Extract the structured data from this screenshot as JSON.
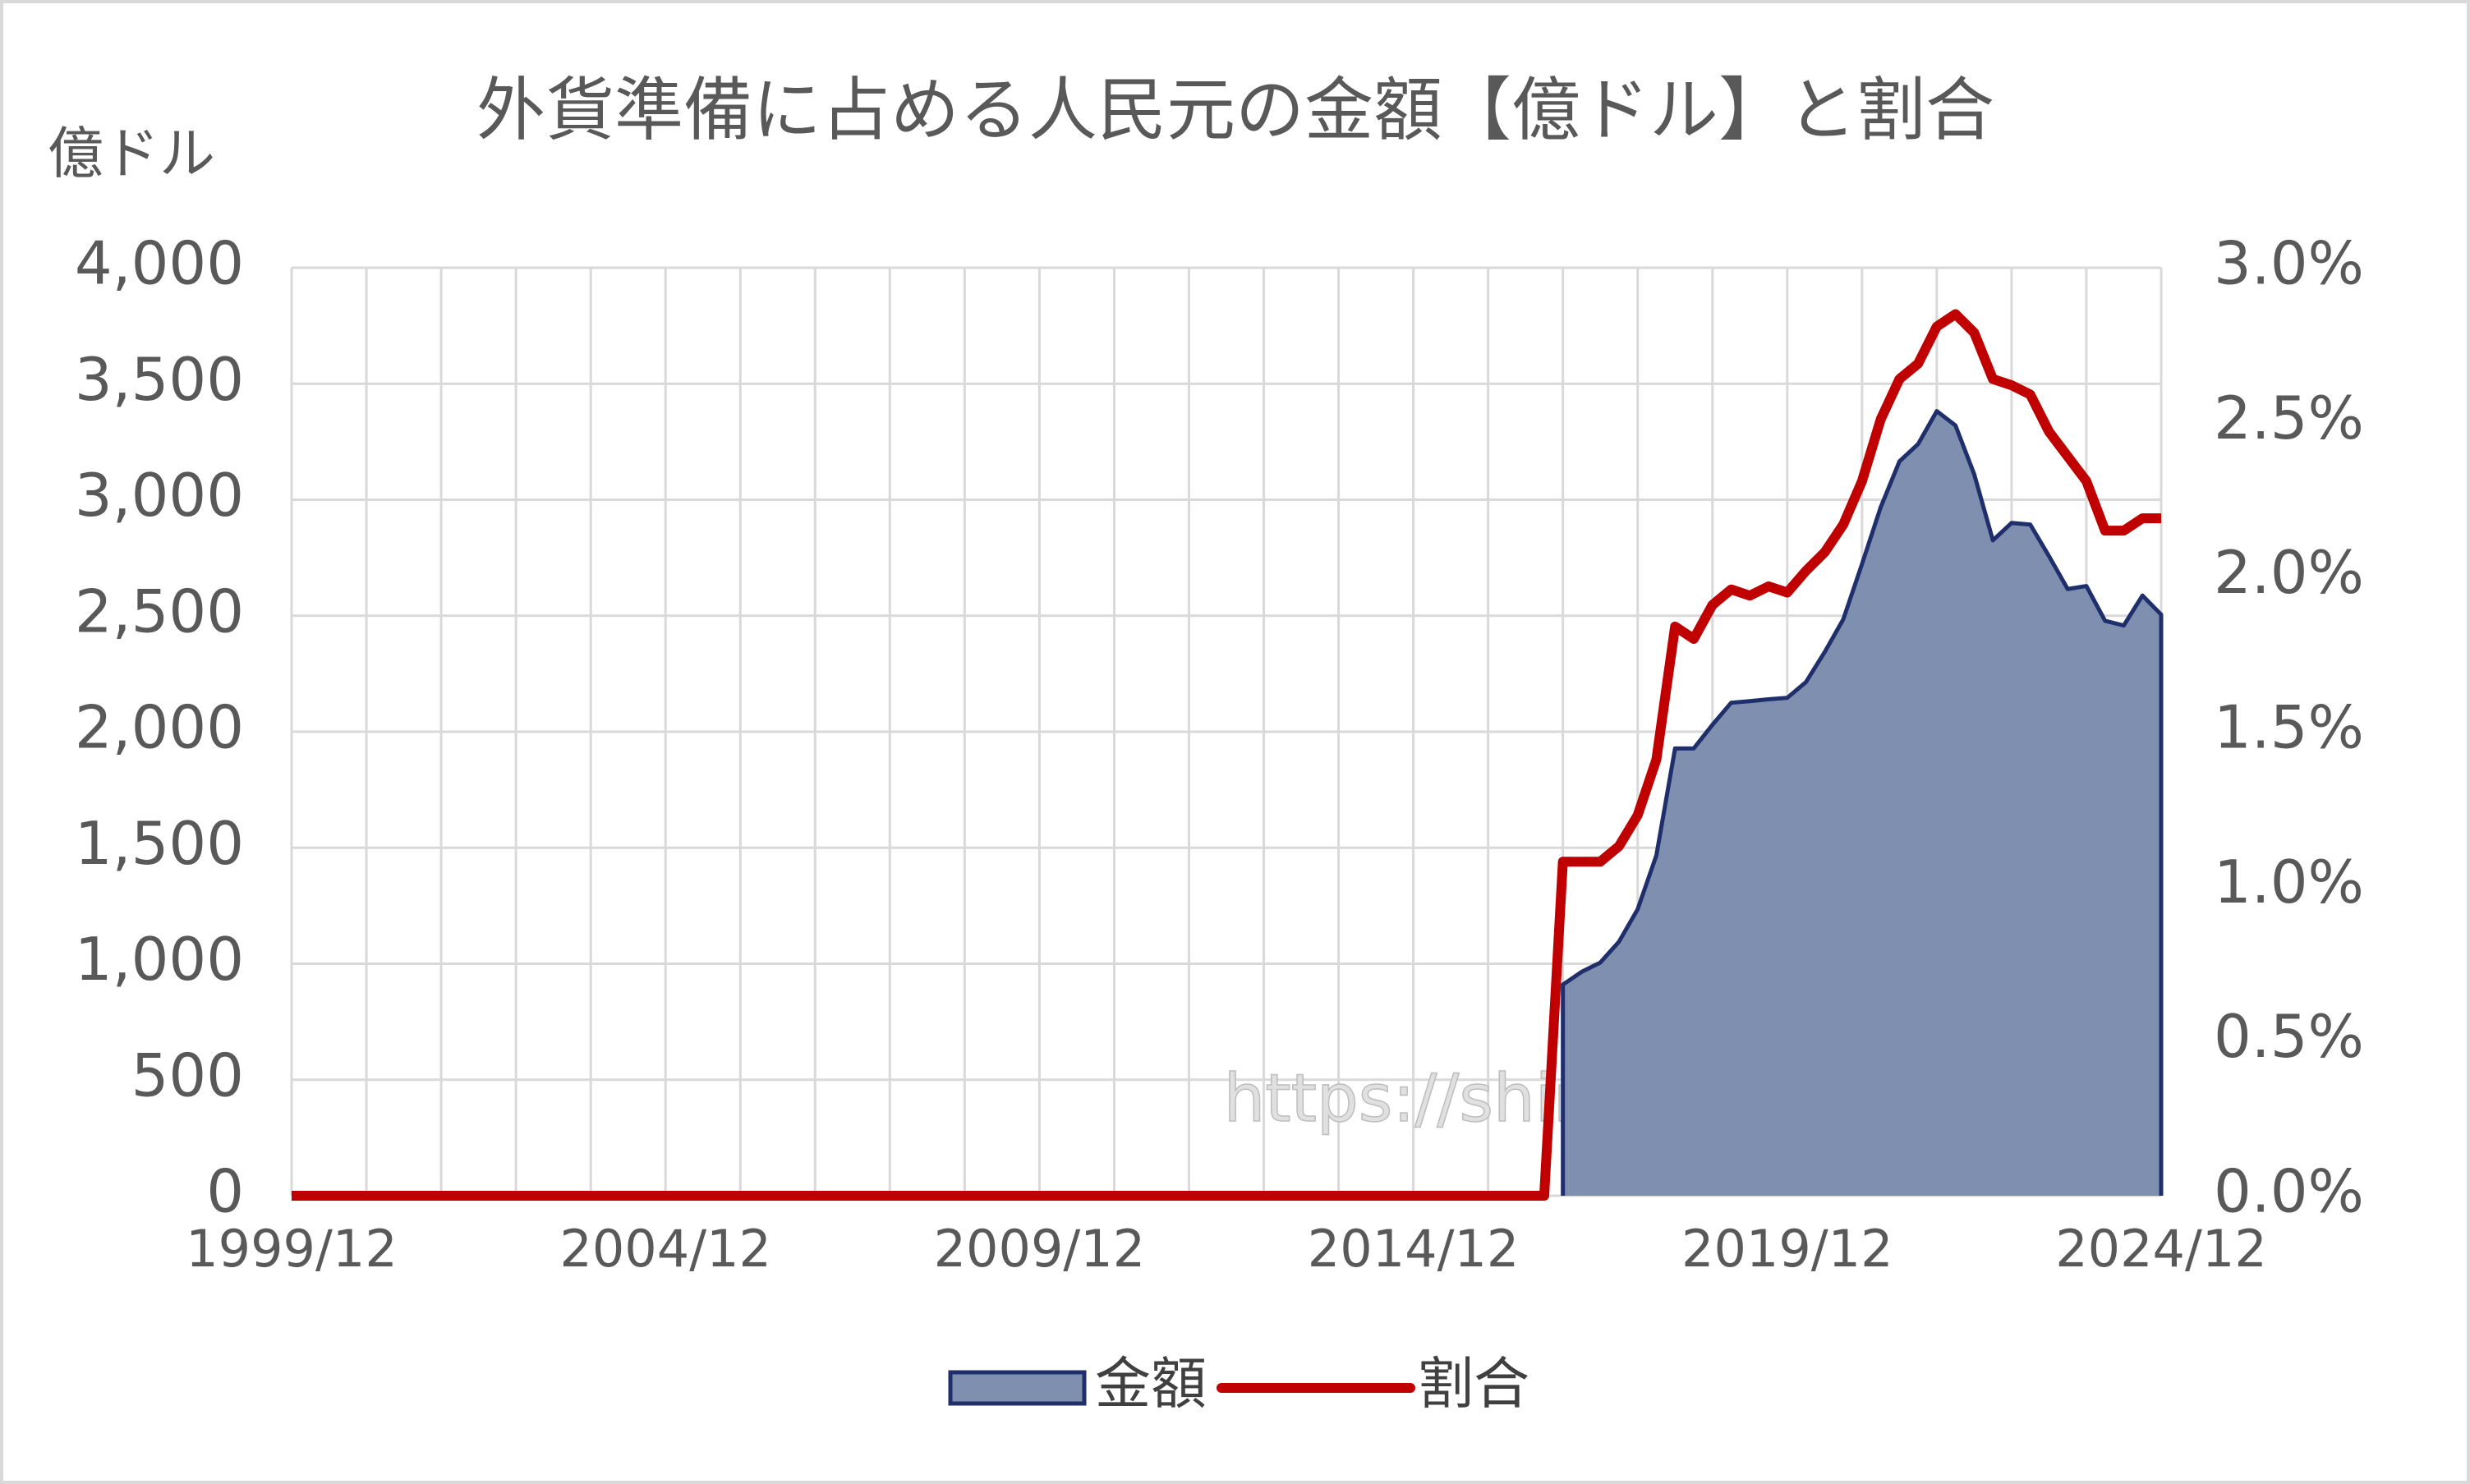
{
  "chart_data": {
    "type": "area-line",
    "title": "外貨準備に占める人民元の金額【億ドル】と割合",
    "y_label": "億ドル",
    "watermark": "https://shinjukuacc.com",
    "x": [
      "1999/12",
      "2000/03",
      "2000/06",
      "2000/09",
      "2000/12",
      "2001/03",
      "2001/06",
      "2001/09",
      "2001/12",
      "2002/03",
      "2002/06",
      "2002/09",
      "2002/12",
      "2003/03",
      "2003/06",
      "2003/09",
      "2003/12",
      "2004/03",
      "2004/06",
      "2004/09",
      "2004/12",
      "2005/03",
      "2005/06",
      "2005/09",
      "2005/12",
      "2006/03",
      "2006/06",
      "2006/09",
      "2006/12",
      "2007/03",
      "2007/06",
      "2007/09",
      "2007/12",
      "2008/03",
      "2008/06",
      "2008/09",
      "2008/12",
      "2009/03",
      "2009/06",
      "2009/09",
      "2009/12",
      "2010/03",
      "2010/06",
      "2010/09",
      "2010/12",
      "2011/03",
      "2011/06",
      "2011/09",
      "2011/12",
      "2012/03",
      "2012/06",
      "2012/09",
      "2012/12",
      "2013/03",
      "2013/06",
      "2013/09",
      "2013/12",
      "2014/03",
      "2014/06",
      "2014/09",
      "2014/12",
      "2015/03",
      "2015/06",
      "2015/09",
      "2015/12",
      "2016/03",
      "2016/06",
      "2016/09",
      "2016/12",
      "2017/03",
      "2017/06",
      "2017/09",
      "2017/12",
      "2018/03",
      "2018/06",
      "2018/09",
      "2018/12",
      "2019/03",
      "2019/06",
      "2019/09",
      "2019/12",
      "2020/03",
      "2020/06",
      "2020/09",
      "2020/12",
      "2021/03",
      "2021/06",
      "2021/09",
      "2021/12",
      "2022/03",
      "2022/06",
      "2022/09",
      "2022/12",
      "2023/03",
      "2023/06",
      "2023/09",
      "2023/12",
      "2024/03",
      "2024/06",
      "2024/09",
      "2024/12"
    ],
    "xticks": [
      "1999/12",
      "2004/12",
      "2009/12",
      "2014/12",
      "2019/12",
      "2024/12"
    ],
    "series": [
      {
        "name": "金額",
        "kind": "area",
        "color": "#7f8fb0",
        "line_color": "#1f2f6b",
        "axis": "y",
        "values": [
          null,
          null,
          null,
          null,
          null,
          null,
          null,
          null,
          null,
          null,
          null,
          null,
          null,
          null,
          null,
          null,
          null,
          null,
          null,
          null,
          null,
          null,
          null,
          null,
          null,
          null,
          null,
          null,
          null,
          null,
          null,
          null,
          null,
          null,
          null,
          null,
          null,
          null,
          null,
          null,
          null,
          null,
          null,
          null,
          null,
          null,
          null,
          null,
          null,
          null,
          null,
          null,
          null,
          null,
          null,
          null,
          null,
          null,
          null,
          null,
          null,
          null,
          null,
          null,
          null,
          null,
          null,
          null,
          910,
          965,
          1005,
          1095,
          1235,
          1467,
          1928,
          1928,
          2030,
          2125,
          2132,
          2140,
          2146,
          2214,
          2343,
          2485,
          2723,
          2968,
          3165,
          3240,
          3382,
          3320,
          3110,
          2825,
          2900,
          2893,
          2757,
          2615,
          2628,
          2478,
          2458,
          2587,
          2505
        ]
      },
      {
        "name": "割合",
        "kind": "line",
        "color": "#c00000",
        "axis": "y2",
        "values": [
          0,
          0,
          0,
          0,
          0,
          0,
          0,
          0,
          0,
          0,
          0,
          0,
          0,
          0,
          0,
          0,
          0,
          0,
          0,
          0,
          0,
          0,
          0,
          0,
          0,
          0,
          0,
          0,
          0,
          0,
          0,
          0,
          0,
          0,
          0,
          0,
          0,
          0,
          0,
          0,
          0,
          0,
          0,
          0,
          0,
          0,
          0,
          0,
          0,
          0,
          0,
          0,
          0,
          0,
          0,
          0,
          0,
          0,
          0,
          0,
          0,
          0,
          0,
          0,
          0,
          0,
          0,
          0,
          1.08,
          1.08,
          1.08,
          1.13,
          1.23,
          1.41,
          1.84,
          1.8,
          1.91,
          1.96,
          1.94,
          1.97,
          1.95,
          2.02,
          2.08,
          2.17,
          2.31,
          2.51,
          2.64,
          2.69,
          2.81,
          2.85,
          2.79,
          2.64,
          2.62,
          2.59,
          2.47,
          2.39,
          2.31,
          2.15,
          2.15,
          2.19,
          2.19
        ]
      }
    ],
    "ylim": [
      0,
      4000
    ],
    "yticks": [
      0,
      500,
      {
        "value": 1000,
        "label": "1,000"
      },
      {
        "value": 1500,
        "label": "1,500"
      },
      {
        "value": 2000,
        "label": "2,000"
      },
      {
        "value": 2500,
        "label": "2,500"
      },
      {
        "value": 3000,
        "label": "3,000"
      },
      {
        "value": 3500,
        "label": "3,500"
      },
      {
        "value": 4000,
        "label": "4,000"
      }
    ],
    "y2lim": [
      0,
      3
    ],
    "y2ticks": [
      {
        "value": 0,
        "label": "0.0%"
      },
      {
        "value": 0.5,
        "label": "0.5%"
      },
      {
        "value": 1,
        "label": "1.0%"
      },
      {
        "value": 1.5,
        "label": "1.5%"
      },
      {
        "value": 2,
        "label": "2.0%"
      },
      {
        "value": 2.5,
        "label": "2.5%"
      },
      {
        "value": 3,
        "label": "3.0%"
      }
    ],
    "grid": true,
    "legend": "bottom"
  }
}
